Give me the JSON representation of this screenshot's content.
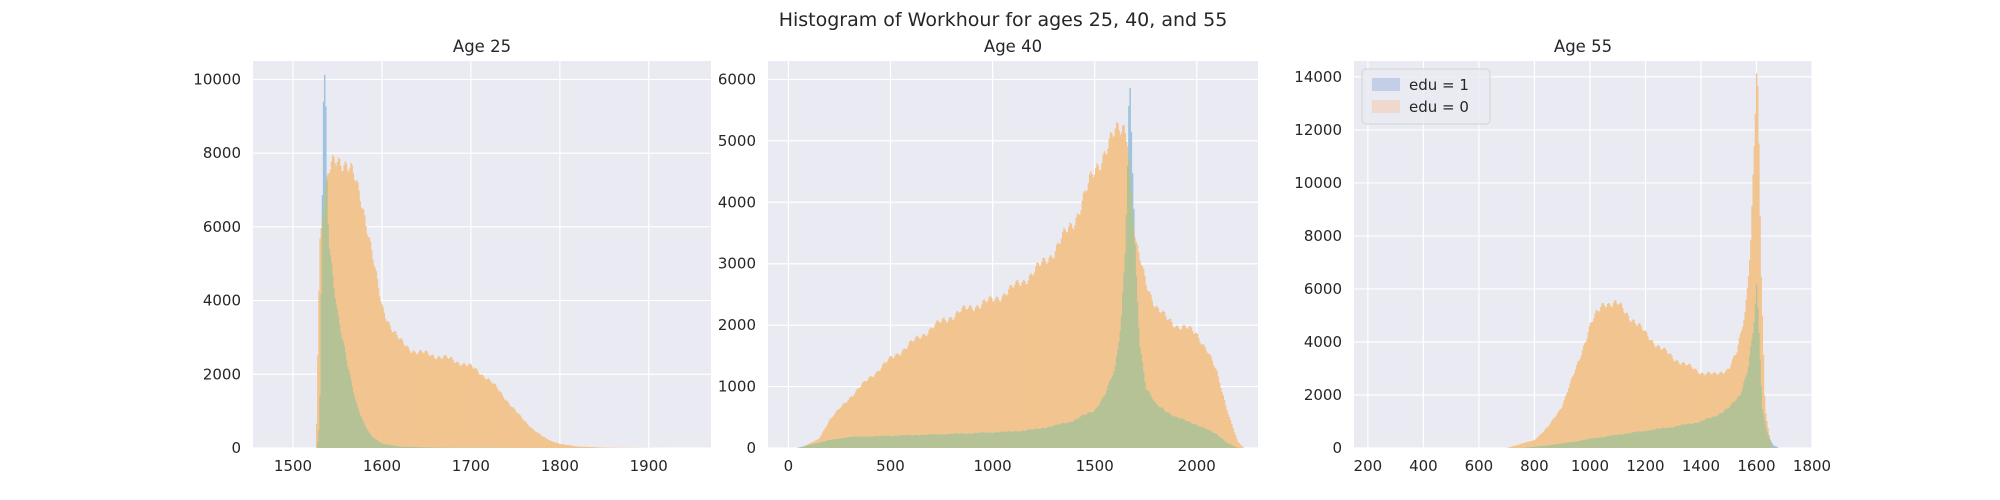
{
  "figure": {
    "title": "Histogram of Workhour for ages 25, 40, and 55"
  },
  "colors": {
    "edu1": "#9ec3e0",
    "edu0": "#f2c48f",
    "overlap": "#b4c295",
    "panel_bg": "#eaeaf2",
    "grid": "#ffffff",
    "legend_edu1": "#c2cfe6",
    "legend_edu0": "#efd8ce"
  },
  "chart_data": [
    {
      "type": "histogram",
      "title": "Age 25",
      "xlim": [
        1455,
        1970
      ],
      "ylim": [
        0,
        10500
      ],
      "xticks": [
        1500,
        1600,
        1700,
        1800,
        1900
      ],
      "yticks": [
        0,
        2000,
        4000,
        6000,
        8000,
        10000
      ],
      "grid": true,
      "legend": null,
      "series": [
        {
          "name": "edu = 1",
          "points": [
            [
              1527,
              0
            ],
            [
              1530,
              700
            ],
            [
              1532,
              5000
            ],
            [
              1534,
              9200
            ],
            [
              1536,
              10000
            ],
            [
              1538,
              7200
            ],
            [
              1540,
              5600
            ],
            [
              1545,
              4600
            ],
            [
              1550,
              3700
            ],
            [
              1555,
              3000
            ],
            [
              1560,
              2350
            ],
            [
              1565,
              1800
            ],
            [
              1570,
              1300
            ],
            [
              1575,
              950
            ],
            [
              1580,
              650
            ],
            [
              1585,
              420
            ],
            [
              1590,
              280
            ],
            [
              1600,
              120
            ],
            [
              1620,
              40
            ],
            [
              1660,
              10
            ],
            [
              1800,
              0
            ]
          ]
        },
        {
          "name": "edu = 0",
          "points": [
            [
              1526,
              0
            ],
            [
              1528,
              3000
            ],
            [
              1530,
              5600
            ],
            [
              1535,
              6800
            ],
            [
              1540,
              7400
            ],
            [
              1545,
              7700
            ],
            [
              1550,
              7850
            ],
            [
              1555,
              7800
            ],
            [
              1560,
              7700
            ],
            [
              1565,
              7500
            ],
            [
              1570,
              7200
            ],
            [
              1575,
              6850
            ],
            [
              1580,
              6400
            ],
            [
              1585,
              5800
            ],
            [
              1590,
              5100
            ],
            [
              1595,
              4400
            ],
            [
              1600,
              3800
            ],
            [
              1610,
              3300
            ],
            [
              1620,
              2900
            ],
            [
              1630,
              2700
            ],
            [
              1640,
              2600
            ],
            [
              1650,
              2550
            ],
            [
              1660,
              2500
            ],
            [
              1670,
              2450
            ],
            [
              1680,
              2380
            ],
            [
              1690,
              2300
            ],
            [
              1700,
              2200
            ],
            [
              1710,
              2050
            ],
            [
              1720,
              1850
            ],
            [
              1730,
              1600
            ],
            [
              1740,
              1300
            ],
            [
              1750,
              1000
            ],
            [
              1760,
              740
            ],
            [
              1770,
              500
            ],
            [
              1780,
              320
            ],
            [
              1790,
              190
            ],
            [
              1800,
              110
            ],
            [
              1820,
              40
            ],
            [
              1850,
              10
            ],
            [
              1900,
              2
            ],
            [
              1930,
              0
            ]
          ]
        }
      ]
    },
    {
      "type": "histogram",
      "title": "Age 40",
      "xlim": [
        -100,
        2300
      ],
      "ylim": [
        0,
        6300
      ],
      "xticks": [
        0,
        500,
        1000,
        1500,
        2000
      ],
      "yticks": [
        0,
        1000,
        2000,
        3000,
        4000,
        5000,
        6000
      ],
      "grid": true,
      "legend": null,
      "series": [
        {
          "name": "edu = 1",
          "points": [
            [
              40,
              0
            ],
            [
              100,
              50
            ],
            [
              200,
              130
            ],
            [
              300,
              180
            ],
            [
              500,
              200
            ],
            [
              700,
              220
            ],
            [
              900,
              240
            ],
            [
              1100,
              270
            ],
            [
              1200,
              300
            ],
            [
              1300,
              360
            ],
            [
              1400,
              450
            ],
            [
              1500,
              620
            ],
            [
              1550,
              850
            ],
            [
              1600,
              1300
            ],
            [
              1630,
              2100
            ],
            [
              1650,
              3300
            ],
            [
              1665,
              5000
            ],
            [
              1670,
              6000
            ],
            [
              1680,
              5000
            ],
            [
              1700,
              2900
            ],
            [
              1720,
              1700
            ],
            [
              1750,
              1000
            ],
            [
              1800,
              700
            ],
            [
              1900,
              500
            ],
            [
              2000,
              380
            ],
            [
              2100,
              220
            ],
            [
              2150,
              80
            ],
            [
              2200,
              0
            ]
          ]
        },
        {
          "name": "edu = 0",
          "points": [
            [
              60,
              0
            ],
            [
              150,
              150
            ],
            [
              200,
              450
            ],
            [
              300,
              820
            ],
            [
              400,
              1150
            ],
            [
              500,
              1450
            ],
            [
              600,
              1700
            ],
            [
              700,
              1950
            ],
            [
              800,
              2150
            ],
            [
              900,
              2300
            ],
            [
              1000,
              2400
            ],
            [
              1100,
              2600
            ],
            [
              1200,
              2850
            ],
            [
              1300,
              3200
            ],
            [
              1400,
              3700
            ],
            [
              1450,
              4100
            ],
            [
              1500,
              4500
            ],
            [
              1550,
              4850
            ],
            [
              1600,
              5100
            ],
            [
              1640,
              5250
            ],
            [
              1660,
              5150
            ],
            [
              1680,
              4100
            ],
            [
              1700,
              3300
            ],
            [
              1750,
              2700
            ],
            [
              1800,
              2300
            ],
            [
              1850,
              2100
            ],
            [
              1900,
              2000
            ],
            [
              1950,
              1950
            ],
            [
              2000,
              1850
            ],
            [
              2050,
              1600
            ],
            [
              2100,
              1200
            ],
            [
              2150,
              600
            ],
            [
              2200,
              100
            ],
            [
              2230,
              0
            ]
          ]
        }
      ]
    },
    {
      "type": "histogram",
      "title": "Age 55",
      "xlim": [
        150,
        1800
      ],
      "ylim": [
        0,
        14600
      ],
      "xticks": [
        200,
        400,
        600,
        800,
        1000,
        1200,
        1400,
        1600,
        1800
      ],
      "yticks": [
        0,
        2000,
        4000,
        6000,
        8000,
        10000,
        12000,
        14000
      ],
      "grid": true,
      "legend": "upper left",
      "series": [
        {
          "name": "edu = 1",
          "points": [
            [
              750,
              0
            ],
            [
              850,
              100
            ],
            [
              950,
              250
            ],
            [
              1000,
              350
            ],
            [
              1100,
              500
            ],
            [
              1200,
              650
            ],
            [
              1300,
              800
            ],
            [
              1400,
              1000
            ],
            [
              1450,
              1200
            ],
            [
              1500,
              1500
            ],
            [
              1540,
              2000
            ],
            [
              1570,
              3000
            ],
            [
              1590,
              4500
            ],
            [
              1600,
              6000
            ],
            [
              1610,
              4000
            ],
            [
              1620,
              1500
            ],
            [
              1640,
              500
            ],
            [
              1660,
              100
            ],
            [
              1680,
              0
            ]
          ]
        },
        {
          "name": "edu = 0",
          "points": [
            [
              700,
              0
            ],
            [
              800,
              300
            ],
            [
              850,
              800
            ],
            [
              900,
              1600
            ],
            [
              950,
              3000
            ],
            [
              1000,
              4600
            ],
            [
              1050,
              5500
            ],
            [
              1100,
              5400
            ],
            [
              1150,
              4900
            ],
            [
              1200,
              4300
            ],
            [
              1250,
              3800
            ],
            [
              1300,
              3400
            ],
            [
              1350,
              3100
            ],
            [
              1400,
              2850
            ],
            [
              1450,
              2750
            ],
            [
              1500,
              3000
            ],
            [
              1530,
              3600
            ],
            [
              1560,
              5200
            ],
            [
              1580,
              8000
            ],
            [
              1590,
              11000
            ],
            [
              1600,
              14000
            ],
            [
              1605,
              13000
            ],
            [
              1615,
              7000
            ],
            [
              1630,
              1500
            ],
            [
              1650,
              200
            ],
            [
              1660,
              0
            ]
          ]
        }
      ]
    }
  ],
  "legend": {
    "items": [
      {
        "label": "edu = 1"
      },
      {
        "label": "edu = 0"
      }
    ]
  }
}
